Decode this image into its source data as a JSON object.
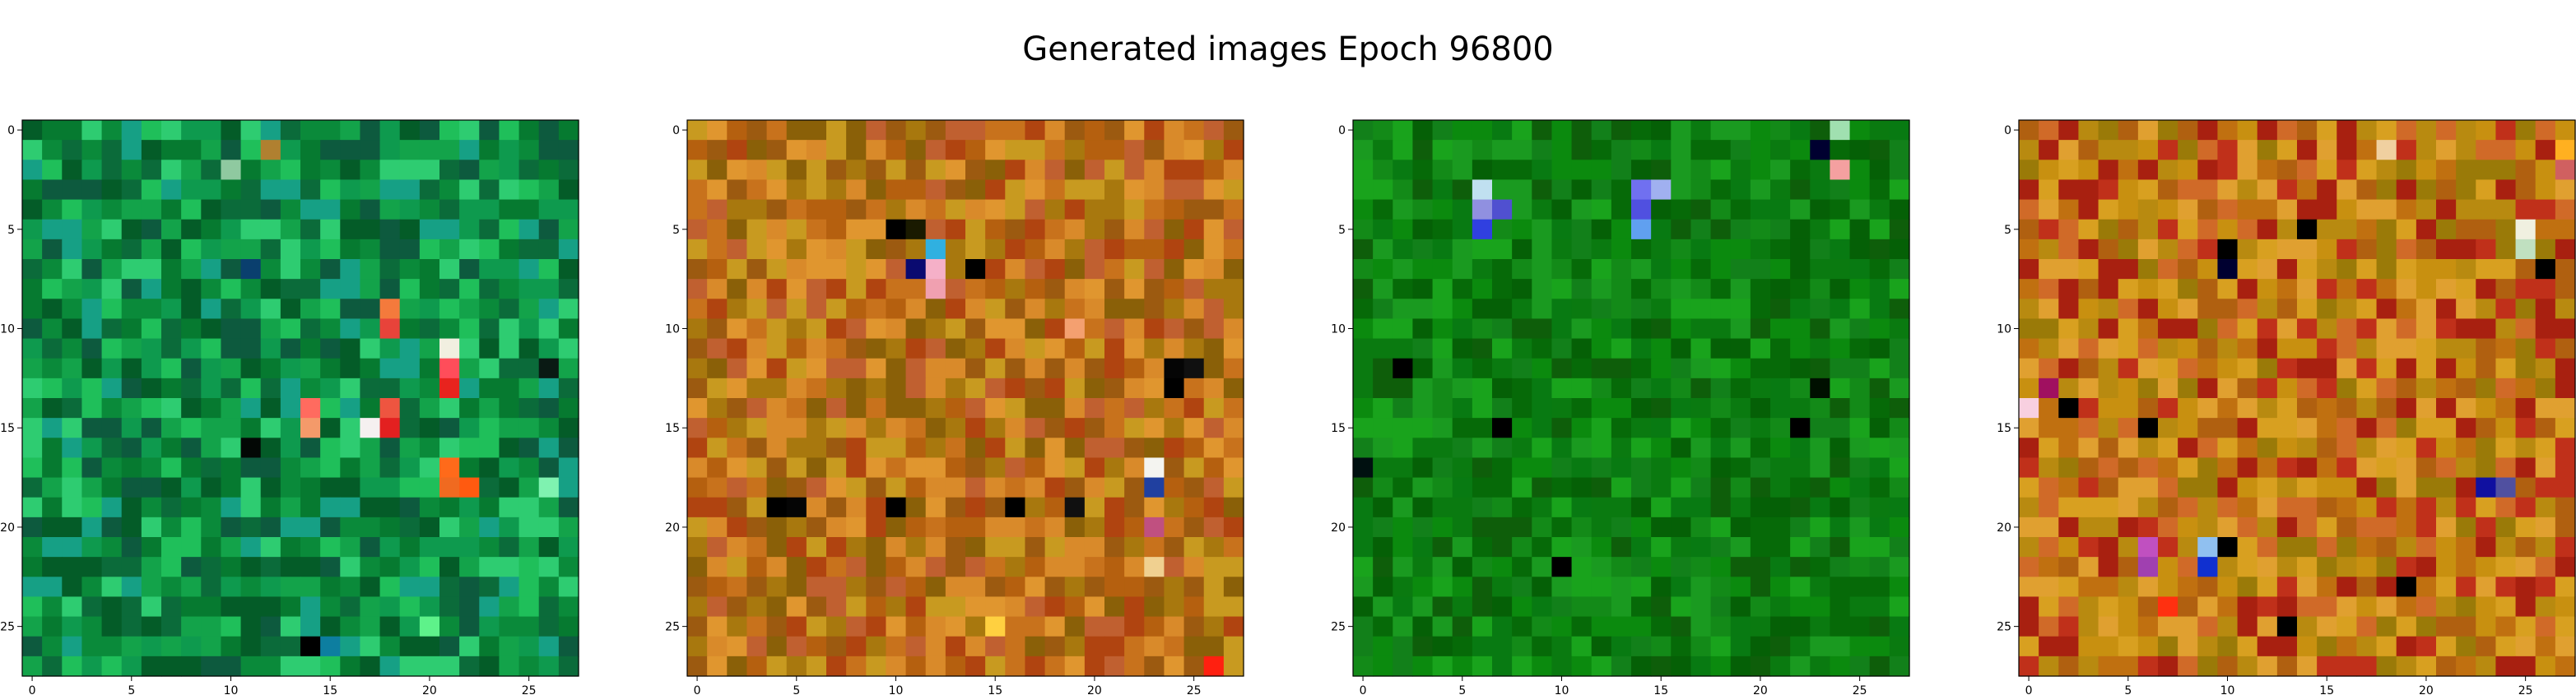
{
  "title": "Generated images Epoch 96800",
  "chart_data": [
    {
      "type": "heatmap",
      "title": "",
      "xlabel": "",
      "ylabel": "",
      "xlim": [
        0,
        27
      ],
      "ylim": [
        0,
        27
      ],
      "grid": false,
      "xticks": [
        "0",
        "5",
        "10",
        "15",
        "20",
        "25"
      ],
      "yticks": [
        "0",
        "5",
        "10",
        "15",
        "20",
        "25"
      ],
      "palette": [
        "#0a8a3a",
        "#067a30",
        "#045c28",
        "#0b6b3a",
        "#13a34a",
        "#1fbf5a",
        "#2ecc71",
        "#0d5a3e",
        "#16a085",
        "#0e9a4e"
      ],
      "highlights": [
        {
          "x": 10,
          "y": 2,
          "color": "#8fc9a0"
        },
        {
          "x": 12,
          "y": 1,
          "color": "#b08030"
        },
        {
          "x": 11,
          "y": 7,
          "color": "#0a3f6e"
        },
        {
          "x": 18,
          "y": 9,
          "color": "#f47a3c"
        },
        {
          "x": 18,
          "y": 10,
          "color": "#e8433a"
        },
        {
          "x": 21,
          "y": 11,
          "color": "#f1efe0"
        },
        {
          "x": 21,
          "y": 12,
          "color": "#ff4d5a"
        },
        {
          "x": 21,
          "y": 13,
          "color": "#e8231e"
        },
        {
          "x": 14,
          "y": 14,
          "color": "#ff6b5f"
        },
        {
          "x": 14,
          "y": 15,
          "color": "#f49a6a"
        },
        {
          "x": 17,
          "y": 15,
          "color": "#f5f0f0"
        },
        {
          "x": 18,
          "y": 14,
          "color": "#ee5540"
        },
        {
          "x": 18,
          "y": 15,
          "color": "#e32020"
        },
        {
          "x": 21,
          "y": 17,
          "color": "#ff6a1a"
        },
        {
          "x": 22,
          "y": 18,
          "color": "#ff5a10"
        },
        {
          "x": 21,
          "y": 18,
          "color": "#f06a20"
        },
        {
          "x": 26,
          "y": 12,
          "color": "#0a1a14"
        },
        {
          "x": 11,
          "y": 16,
          "color": "#030805"
        },
        {
          "x": 14,
          "y": 26,
          "color": "#000000"
        },
        {
          "x": 15,
          "y": 26,
          "color": "#0d7ea0"
        },
        {
          "x": 20,
          "y": 25,
          "color": "#5ef28a"
        },
        {
          "x": 26,
          "y": 18,
          "color": "#7ff2b0"
        }
      ]
    },
    {
      "type": "heatmap",
      "title": "",
      "xlabel": "",
      "ylabel": "",
      "xlim": [
        0,
        27
      ],
      "ylim": [
        0,
        27
      ],
      "grid": false,
      "xticks": [
        "0",
        "5",
        "10",
        "15",
        "20",
        "25"
      ],
      "yticks": [
        "0",
        "5",
        "10",
        "15",
        "20",
        "25"
      ],
      "palette": [
        "#c8721c",
        "#b5600f",
        "#d98a2a",
        "#a8780e",
        "#9c5a10",
        "#c89a20",
        "#b04410",
        "#e0962f",
        "#8a6008",
        "#c06030"
      ],
      "highlights": [
        {
          "x": 10,
          "y": 5,
          "color": "#000000"
        },
        {
          "x": 11,
          "y": 5,
          "color": "#1a1a00"
        },
        {
          "x": 11,
          "y": 7,
          "color": "#0a0a70"
        },
        {
          "x": 12,
          "y": 6,
          "color": "#30b0e0"
        },
        {
          "x": 12,
          "y": 7,
          "color": "#f5b0c8"
        },
        {
          "x": 12,
          "y": 8,
          "color": "#f0a0b0"
        },
        {
          "x": 14,
          "y": 7,
          "color": "#000000"
        },
        {
          "x": 19,
          "y": 10,
          "color": "#f4a070"
        },
        {
          "x": 24,
          "y": 12,
          "color": "#050505"
        },
        {
          "x": 24,
          "y": 13,
          "color": "#000000"
        },
        {
          "x": 25,
          "y": 12,
          "color": "#101010"
        },
        {
          "x": 23,
          "y": 17,
          "color": "#f4f4f0"
        },
        {
          "x": 23,
          "y": 18,
          "color": "#2040a0"
        },
        {
          "x": 4,
          "y": 19,
          "color": "#000000"
        },
        {
          "x": 5,
          "y": 19,
          "color": "#050505"
        },
        {
          "x": 10,
          "y": 19,
          "color": "#000000"
        },
        {
          "x": 16,
          "y": 19,
          "color": "#000000"
        },
        {
          "x": 19,
          "y": 19,
          "color": "#101010"
        },
        {
          "x": 23,
          "y": 20,
          "color": "#c05080"
        },
        {
          "x": 23,
          "y": 22,
          "color": "#f0d090"
        },
        {
          "x": 15,
          "y": 25,
          "color": "#ffd040"
        },
        {
          "x": 26,
          "y": 27,
          "color": "#ff2010"
        }
      ]
    },
    {
      "type": "heatmap",
      "title": "",
      "xlabel": "",
      "ylabel": "",
      "xlim": [
        0,
        27
      ],
      "ylim": [
        0,
        27
      ],
      "grid": false,
      "xticks": [
        "0",
        "5",
        "10",
        "15",
        "20",
        "25"
      ],
      "yticks": [
        "0",
        "5",
        "10",
        "15",
        "20",
        "25"
      ],
      "palette": [
        "#0a7a10",
        "#066a08",
        "#138a18",
        "#0e5e0a",
        "#1a9a20",
        "#087a12",
        "#0b8a0e",
        "#056006",
        "#12801a",
        "#19a31c"
      ],
      "highlights": [
        {
          "x": 24,
          "y": 0,
          "color": "#a0e0b0"
        },
        {
          "x": 23,
          "y": 1,
          "color": "#000030"
        },
        {
          "x": 24,
          "y": 2,
          "color": "#f4a0a0"
        },
        {
          "x": 6,
          "y": 3,
          "color": "#c0e0f0"
        },
        {
          "x": 6,
          "y": 4,
          "color": "#9090e0"
        },
        {
          "x": 7,
          "y": 4,
          "color": "#5050d0"
        },
        {
          "x": 6,
          "y": 5,
          "color": "#3040e0"
        },
        {
          "x": 14,
          "y": 3,
          "color": "#7070f0"
        },
        {
          "x": 15,
          "y": 3,
          "color": "#a0b0f0"
        },
        {
          "x": 14,
          "y": 4,
          "color": "#5050e0"
        },
        {
          "x": 14,
          "y": 5,
          "color": "#60a0f0"
        },
        {
          "x": 2,
          "y": 12,
          "color": "#000000"
        },
        {
          "x": 7,
          "y": 15,
          "color": "#000000"
        },
        {
          "x": 0,
          "y": 17,
          "color": "#001010"
        },
        {
          "x": 10,
          "y": 22,
          "color": "#000000"
        },
        {
          "x": 22,
          "y": 15,
          "color": "#000000"
        },
        {
          "x": 23,
          "y": 13,
          "color": "#001000"
        }
      ]
    },
    {
      "type": "heatmap",
      "title": "",
      "xlabel": "",
      "ylabel": "",
      "xlim": [
        0,
        27
      ],
      "ylim": [
        0,
        27
      ],
      "grid": false,
      "xticks": [
        "0",
        "5",
        "10",
        "15",
        "20",
        "25"
      ],
      "yticks": [
        "0",
        "5",
        "10",
        "15",
        "20",
        "25"
      ],
      "palette": [
        "#c89010",
        "#b06010",
        "#d8a020",
        "#a82010",
        "#e0a030",
        "#c07010",
        "#9a7a08",
        "#d06a28",
        "#b88a10",
        "#c0301a"
      ],
      "highlights": [
        {
          "x": 27,
          "y": 1,
          "color": "#ffb020"
        },
        {
          "x": 27,
          "y": 2,
          "color": "#d06060"
        },
        {
          "x": 18,
          "y": 1,
          "color": "#f0d0a0"
        },
        {
          "x": 14,
          "y": 5,
          "color": "#000000"
        },
        {
          "x": 10,
          "y": 6,
          "color": "#000000"
        },
        {
          "x": 10,
          "y": 7,
          "color": "#000030"
        },
        {
          "x": 25,
          "y": 5,
          "color": "#f0f0e0"
        },
        {
          "x": 25,
          "y": 6,
          "color": "#c0e0c0"
        },
        {
          "x": 26,
          "y": 7,
          "color": "#000000"
        },
        {
          "x": 1,
          "y": 13,
          "color": "#a01060"
        },
        {
          "x": 0,
          "y": 14,
          "color": "#f8d0e0"
        },
        {
          "x": 2,
          "y": 14,
          "color": "#000000"
        },
        {
          "x": 6,
          "y": 15,
          "color": "#000000"
        },
        {
          "x": 6,
          "y": 21,
          "color": "#c050c0"
        },
        {
          "x": 6,
          "y": 22,
          "color": "#a040b0"
        },
        {
          "x": 9,
          "y": 21,
          "color": "#90c0f0"
        },
        {
          "x": 10,
          "y": 21,
          "color": "#000000"
        },
        {
          "x": 9,
          "y": 22,
          "color": "#1030d0"
        },
        {
          "x": 23,
          "y": 18,
          "color": "#1010a0"
        },
        {
          "x": 24,
          "y": 18,
          "color": "#5050a0"
        },
        {
          "x": 13,
          "y": 25,
          "color": "#000000"
        },
        {
          "x": 19,
          "y": 23,
          "color": "#000000"
        },
        {
          "x": 7,
          "y": 24,
          "color": "#ff3010"
        }
      ]
    }
  ]
}
